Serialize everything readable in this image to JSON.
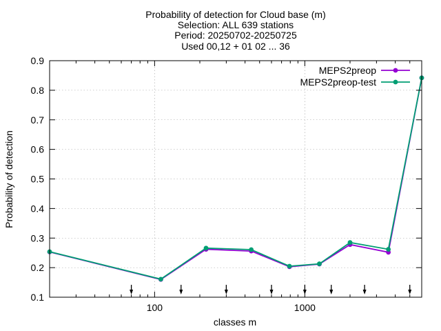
{
  "chart_data": {
    "type": "line",
    "title_lines": [
      "Probability of detection  for Cloud base (m)",
      "Selection: ALL    639 stations",
      "Period: 20250702-20250725",
      "Used 00,12 + 01 02 ... 36"
    ],
    "xlabel": "classes m",
    "ylabel": "Probability of detection",
    "x_scale": "log",
    "xlim": [
      20,
      6000
    ],
    "ylim": [
      0.1,
      0.9
    ],
    "x_ticks": [
      100,
      1000
    ],
    "x_tick_labels": [
      "100",
      "1000"
    ],
    "y_ticks": [
      0.1,
      0.2,
      0.3,
      0.4,
      0.5,
      0.6,
      0.7,
      0.8,
      0.9
    ],
    "y_tick_labels": [
      "0.1",
      "0.2",
      "0.3",
      "0.4",
      "0.5",
      "0.6",
      "0.7",
      "0.8",
      "0.9"
    ],
    "grid": true,
    "legend_position": "top-right",
    "class_limits": [
      70,
      150,
      300,
      600,
      1000,
      1500,
      2500,
      5000
    ],
    "series": [
      {
        "name": "MEPS2preop",
        "color": "#9400d3",
        "x": [
          20,
          110,
          220,
          440,
          790,
          1250,
          2000,
          3600,
          6000
        ],
        "values": [
          0.253,
          0.16,
          0.262,
          0.256,
          0.203,
          0.212,
          0.278,
          0.252,
          0.842
        ]
      },
      {
        "name": "MEPS2preop-test",
        "color": "#009e73",
        "x": [
          20,
          110,
          220,
          440,
          790,
          1250,
          2000,
          3600,
          6000
        ],
        "values": [
          0.254,
          0.161,
          0.266,
          0.261,
          0.205,
          0.213,
          0.285,
          0.262,
          0.842
        ]
      }
    ]
  }
}
